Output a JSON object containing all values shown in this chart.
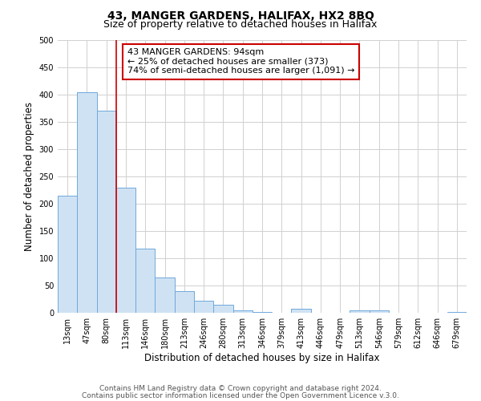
{
  "title": "43, MANGER GARDENS, HALIFAX, HX2 8BQ",
  "subtitle": "Size of property relative to detached houses in Halifax",
  "xlabel": "Distribution of detached houses by size in Halifax",
  "ylabel": "Number of detached properties",
  "bar_labels": [
    "13sqm",
    "47sqm",
    "80sqm",
    "113sqm",
    "146sqm",
    "180sqm",
    "213sqm",
    "246sqm",
    "280sqm",
    "313sqm",
    "346sqm",
    "379sqm",
    "413sqm",
    "446sqm",
    "479sqm",
    "513sqm",
    "546sqm",
    "579sqm",
    "612sqm",
    "646sqm",
    "679sqm"
  ],
  "bar_values": [
    215,
    405,
    370,
    230,
    118,
    65,
    40,
    22,
    14,
    5,
    2,
    0,
    8,
    0,
    0,
    5,
    5,
    0,
    0,
    0,
    2
  ],
  "bar_color": "#cfe2f3",
  "bar_edge_color": "#6fa8dc",
  "vline_color": "#cc0000",
  "annotation_box_text": "43 MANGER GARDENS: 94sqm\n← 25% of detached houses are smaller (373)\n74% of semi-detached houses are larger (1,091) →",
  "ylim": [
    0,
    500
  ],
  "yticks": [
    0,
    50,
    100,
    150,
    200,
    250,
    300,
    350,
    400,
    450,
    500
  ],
  "grid_color": "#d0d0d0",
  "footer_line1": "Contains HM Land Registry data © Crown copyright and database right 2024.",
  "footer_line2": "Contains public sector information licensed under the Open Government Licence v.3.0.",
  "title_fontsize": 10,
  "subtitle_fontsize": 9,
  "axis_label_fontsize": 8.5,
  "tick_fontsize": 7,
  "annotation_fontsize": 8,
  "footer_fontsize": 6.5
}
